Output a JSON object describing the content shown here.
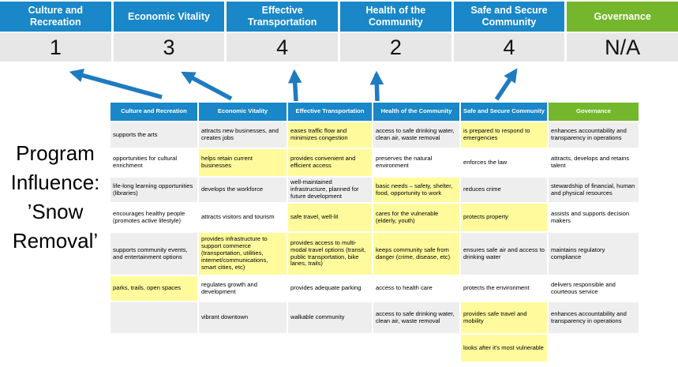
{
  "colors": {
    "header_blue": "#1987C8",
    "header_green": "#74B72C",
    "highlight_yellow": "#FFFB9D",
    "band_gray": "#EEEEEE",
    "score_bg": "#E7E7E7",
    "arrow_blue": "#1E7BBF"
  },
  "title": {
    "lines": [
      "Program",
      "Influence:",
      "’Snow",
      "Removal’"
    ]
  },
  "summary": {
    "columns": [
      {
        "label": "Culture and Recreation",
        "score": "1",
        "color": "blue"
      },
      {
        "label": "Economic Vitality",
        "score": "3",
        "color": "blue"
      },
      {
        "label": "Effective Transportation",
        "score": "4",
        "color": "blue"
      },
      {
        "label": "Health of the Community",
        "score": "2",
        "color": "blue"
      },
      {
        "label": "Safe and Secure Community",
        "score": "4",
        "color": "blue"
      },
      {
        "label": "Governance",
        "score": "N/A",
        "color": "green"
      }
    ]
  },
  "matrix": {
    "headers": [
      {
        "label": "Culture and Recreation",
        "color": "blue"
      },
      {
        "label": "Economic Vitality",
        "color": "blue"
      },
      {
        "label": "Effective Transportation",
        "color": "blue"
      },
      {
        "label": "Health of the Community",
        "color": "blue"
      },
      {
        "label": "Safe and Secure Community",
        "color": "blue"
      },
      {
        "label": "Governance",
        "color": "green"
      }
    ],
    "rows": [
      [
        {
          "t": "supports the arts"
        },
        {
          "t": "attracts new businesses, and creates jobs"
        },
        {
          "t": "eases traffic flow and minimizes congestion",
          "h": true
        },
        {
          "t": "access to safe drinking water, clean air, waste removal"
        },
        {
          "t": "is prepared to respond to emergencies",
          "h": true
        },
        {
          "t": "enhances accountability and transparency in operations"
        }
      ],
      [
        {
          "t": "opportunities for cultural enrichment"
        },
        {
          "t": "helps retain current businesses",
          "h": true
        },
        {
          "t": "provides convenient and efficient access",
          "h": true
        },
        {
          "t": "preserves the natural environment"
        },
        {
          "t": "enforces the law"
        },
        {
          "t": "attracts, develops and retains talent"
        }
      ],
      [
        {
          "t": "life-long learning opportunities (libraries)"
        },
        {
          "t": "develops the workforce"
        },
        {
          "t": "well-maintained infrastructure, planned for future development"
        },
        {
          "t": "basic needs – safety, shelter, food, opportunity to work",
          "h": true
        },
        {
          "t": "reduces crime"
        },
        {
          "t": "stewardship of financial, human and physical resources"
        }
      ],
      [
        {
          "t": "encourages healthy people (promotes active lifestyle)"
        },
        {
          "t": "attracts visitors and tourism"
        },
        {
          "t": "safe travel, well-lit",
          "h": true
        },
        {
          "t": "cares for the vulnerable (elderly, youth)",
          "h": true
        },
        {
          "t": "protects property",
          "h": true
        },
        {
          "t": "assists and supports decision makers"
        }
      ],
      [
        {
          "t": "supports community events, and entertainment options"
        },
        {
          "t": "provides infrastructure to support commerce (transportation, utilities, internet/communications, smart cities, etc)",
          "h": true
        },
        {
          "t": "provides access to multi-modal travel options (transit, public transportation, bike lanes, trails)",
          "h": true
        },
        {
          "t": "keeps community safe from danger (crime, disease, etc)",
          "h": true
        },
        {
          "t": "ensures safe air and access to drinking water"
        },
        {
          "t": "maintains regulatory compliance"
        }
      ],
      [
        {
          "t": "parks, trails, open spaces",
          "h": true
        },
        {
          "t": "regulates growth and development"
        },
        {
          "t": "provides adequate parking"
        },
        {
          "t": "access to health care"
        },
        {
          "t": "protects the environment"
        },
        {
          "t": "delivers responsible and courteous service"
        }
      ],
      [
        {
          "t": ""
        },
        {
          "t": "vibrant downtown"
        },
        {
          "t": "walkable community"
        },
        {
          "t": "access to safe drinking water, clean air, waste removal"
        },
        {
          "t": "provides safe travel and mobility",
          "h": true
        },
        {
          "t": "enhances accountability and transparency in operations"
        }
      ],
      [
        {
          "t": ""
        },
        {
          "t": ""
        },
        {
          "t": ""
        },
        {
          "t": ""
        },
        {
          "t": "looks after it's most vulnerable",
          "h": true
        },
        {
          "t": ""
        }
      ]
    ]
  }
}
